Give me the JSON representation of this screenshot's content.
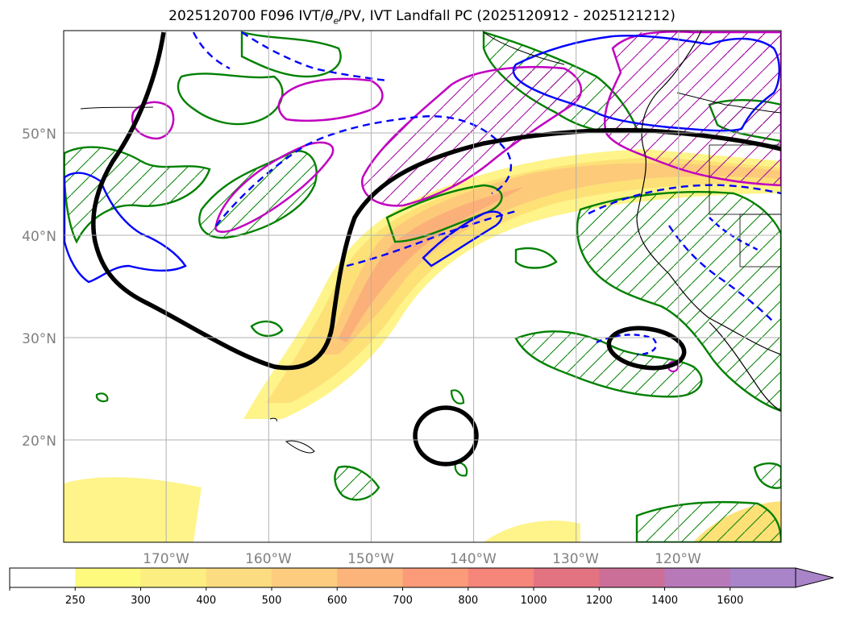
{
  "figure": {
    "title_prefix": "2025120700 F096 IVT/",
    "title_theta": "θ",
    "title_sub": "e",
    "title_suffix": "/PV, IVT Landfall PC (2025120912 - 2025121212)"
  },
  "axes": {
    "lat_labels": [
      "50°N",
      "40°N",
      "30°N",
      "20°N"
    ],
    "lon_labels": [
      "170°W",
      "160°W",
      "150°W",
      "140°W",
      "130°W",
      "120°W"
    ],
    "lat_values": [
      50,
      40,
      30,
      20
    ],
    "lon_values": [
      -170,
      -160,
      -150,
      -140,
      -130,
      -120
    ],
    "lon_range": [
      -180,
      -110
    ],
    "lat_range": [
      10,
      60
    ],
    "grid": true
  },
  "colorbar": {
    "labels": [
      "250",
      "300",
      "400",
      "500",
      "600",
      "700",
      "800",
      "1000",
      "1200",
      "1400",
      "1600"
    ],
    "colors": [
      "#ffffff",
      "#fdfa7d",
      "#fcee80",
      "#fcdc81",
      "#fdcc7e",
      "#fdb47b",
      "#fc9b79",
      "#f6857a",
      "#e47382",
      "#cb6f98",
      "#b879b8",
      "#a984c9"
    ],
    "extend": "max"
  },
  "legend_colors": {
    "ivt_fill": "#fce373",
    "pv_contour": "#0000ff",
    "theta_contour": "#008000",
    "landfall_contour": "#000000",
    "magenta_contour": "#c000c0",
    "coast": "#000000"
  }
}
